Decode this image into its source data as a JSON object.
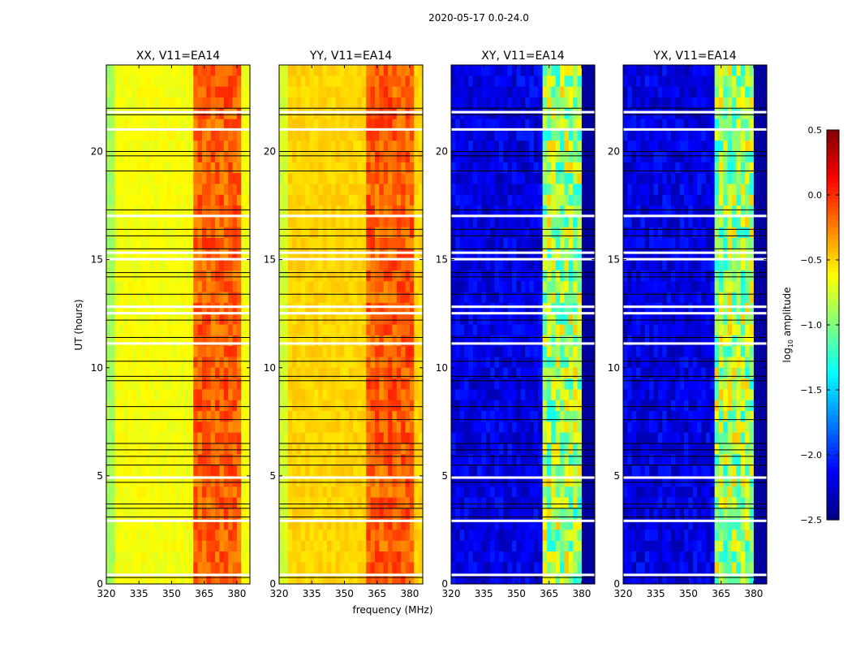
{
  "suptitle": "2020-05-17 0.0-24.0",
  "xlabel": "frequency (MHz)",
  "ylabel": "UT (hours)",
  "colorbar": {
    "label": "log10 amplitude",
    "label_main": "log",
    "label_sub": "10",
    "label_rest": " amplitude",
    "range": [
      -2.5,
      0.5
    ],
    "ticks": [
      "0.5",
      "0.0",
      "−0.5",
      "−1.0",
      "−1.5",
      "−2.0",
      "−2.5"
    ],
    "tick_values": [
      0.5,
      0.0,
      -0.5,
      -1.0,
      -1.5,
      -2.0,
      -2.5
    ],
    "colormap": "jet"
  },
  "chart_data": [
    {
      "type": "heatmap",
      "title": "XX, V11=EA14",
      "xlim": [
        320,
        386
      ],
      "ylim": [
        0,
        24
      ],
      "xticks": [
        "320",
        "335",
        "350",
        "365",
        "380"
      ],
      "xtick_values": [
        320,
        335,
        350,
        365,
        380
      ],
      "yticks": [
        "0",
        "5",
        "10",
        "15",
        "20"
      ],
      "ytick_values": [
        0,
        5,
        10,
        15,
        20
      ],
      "background_level": -0.65,
      "band_mhz": [
        360,
        382
      ],
      "band_level": -0.15,
      "show_ylabel": true
    },
    {
      "type": "heatmap",
      "title": "YY, V11=EA14",
      "xlim": [
        320,
        386
      ],
      "ylim": [
        0,
        24
      ],
      "xticks": [
        "320",
        "335",
        "350",
        "365",
        "380"
      ],
      "xtick_values": [
        320,
        335,
        350,
        365,
        380
      ],
      "yticks": [
        "0",
        "5",
        "10",
        "15",
        "20"
      ],
      "ytick_values": [
        0,
        5,
        10,
        15,
        20
      ],
      "background_level": -0.5,
      "band_mhz": [
        360,
        382
      ],
      "band_level": -0.15,
      "show_xlabel": true
    },
    {
      "type": "heatmap",
      "title": "XY, V11=EA14",
      "xlim": [
        320,
        386
      ],
      "ylim": [
        0,
        24
      ],
      "xticks": [
        "320",
        "335",
        "350",
        "365",
        "380"
      ],
      "xtick_values": [
        320,
        335,
        350,
        365,
        380
      ],
      "yticks": [
        "0",
        "5",
        "10",
        "15",
        "20"
      ],
      "ytick_values": [
        0,
        5,
        10,
        15,
        20
      ],
      "background_level": -2.2,
      "band_mhz": [
        362,
        380
      ],
      "band_level": -0.9
    },
    {
      "type": "heatmap",
      "title": "YX, V11=EA14",
      "xlim": [
        320,
        386
      ],
      "ylim": [
        0,
        24
      ],
      "xticks": [
        "320",
        "335",
        "350",
        "365",
        "380"
      ],
      "xtick_values": [
        320,
        335,
        350,
        365,
        380
      ],
      "yticks": [
        "0",
        "5",
        "10",
        "15",
        "20"
      ],
      "ytick_values": [
        0,
        5,
        10,
        15,
        20
      ],
      "background_level": -2.2,
      "band_mhz": [
        362,
        380
      ],
      "band_level": -0.9
    }
  ],
  "flagged_hours_white": [
    0.4,
    2.9,
    4.9,
    11.1,
    12.5,
    12.8,
    15.0,
    15.3,
    17.0,
    21.0,
    21.8
  ],
  "flagged_hours_black": [
    0.3,
    3.1,
    3.5,
    3.7,
    4.7,
    5.5,
    5.9,
    6.2,
    6.5,
    7.6,
    8.2,
    9.4,
    9.6,
    10.3,
    11.4,
    12.2,
    13.4,
    14.2,
    14.4,
    15.5,
    16.1,
    16.4,
    17.3,
    19.1,
    19.8,
    20.0,
    21.7,
    22.0
  ]
}
